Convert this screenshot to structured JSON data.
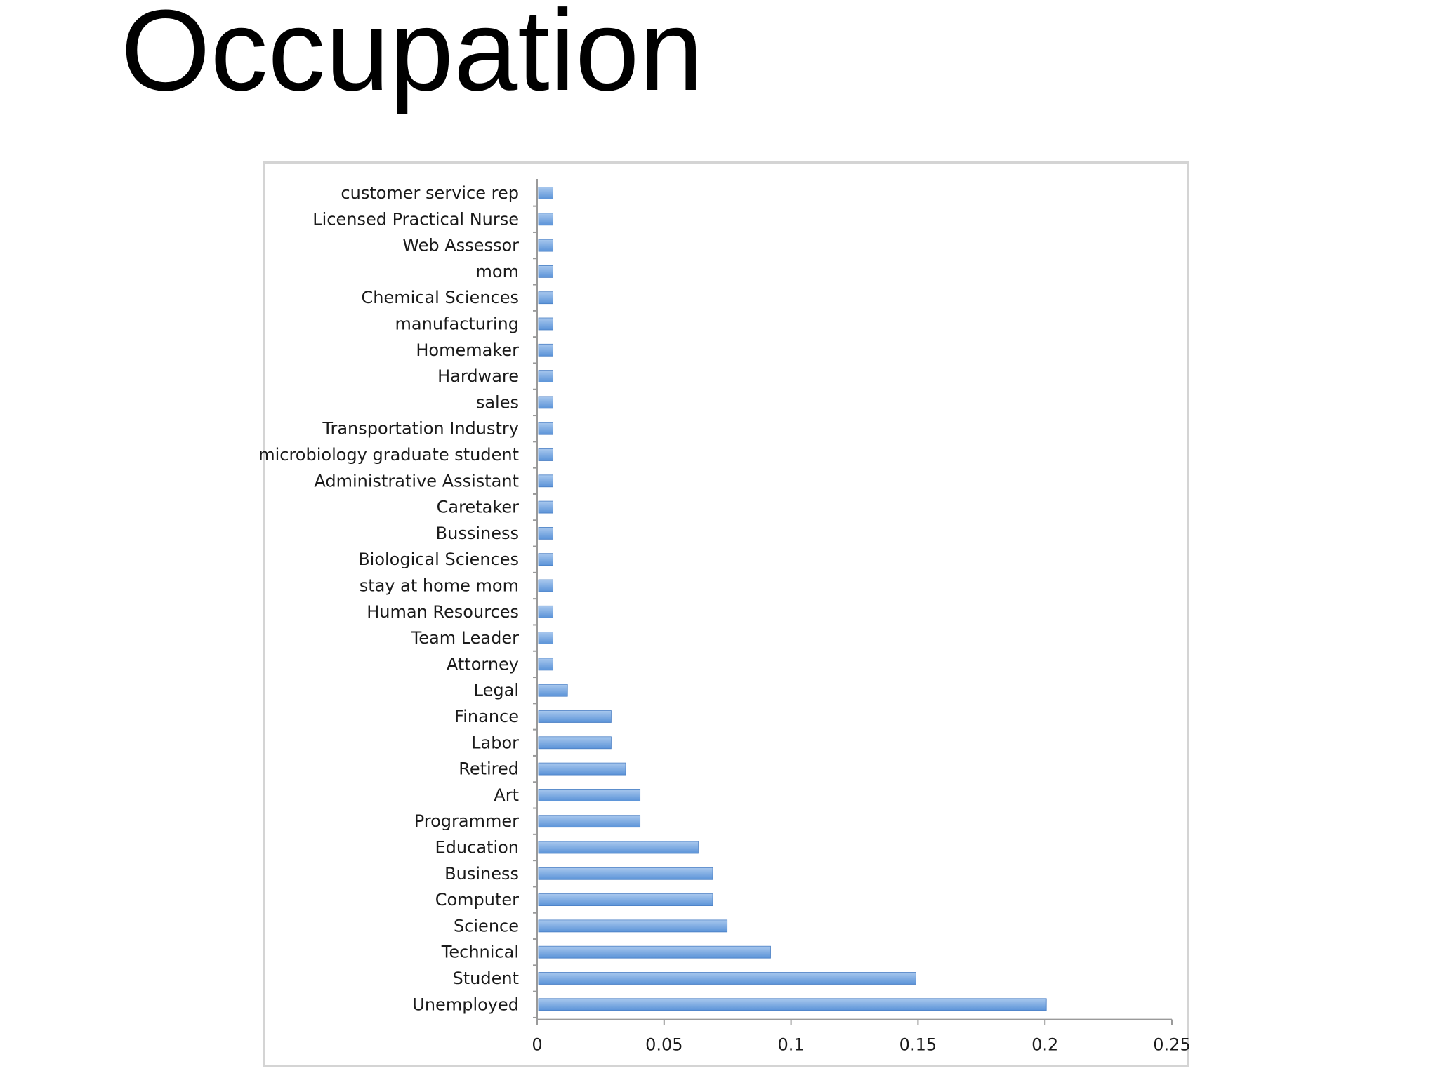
{
  "slide": {
    "title": "Occupation"
  },
  "chart_data": {
    "type": "bar",
    "orientation": "horizontal",
    "categories": [
      "customer service rep",
      "Licensed Practical Nurse",
      "Web Assessor",
      "mom",
      "Chemical Sciences",
      "manufacturing",
      "Homemaker",
      "Hardware",
      "sales",
      "Transportation Industry",
      "microbiology graduate student",
      "Administrative Assistant",
      "Caretaker",
      "Bussiness",
      "Biological Sciences",
      "stay at home mom",
      "Human Resources",
      "Team Leader",
      "Attorney",
      "Legal",
      "Finance",
      "Labor",
      "Retired",
      "Art",
      "Programmer",
      "Education",
      "Business",
      "Computer",
      "Science",
      "Technical",
      "Student",
      "Unemployed"
    ],
    "values": [
      0.0057,
      0.0057,
      0.0057,
      0.0057,
      0.0057,
      0.0057,
      0.0057,
      0.0057,
      0.0057,
      0.0057,
      0.0057,
      0.0057,
      0.0057,
      0.0057,
      0.0057,
      0.0057,
      0.0057,
      0.0057,
      0.0057,
      0.0114,
      0.0286,
      0.0286,
      0.0343,
      0.04,
      0.04,
      0.0629,
      0.0686,
      0.0686,
      0.0743,
      0.0914,
      0.1486,
      0.2
    ],
    "xlim": [
      0,
      0.25
    ],
    "xticks": [
      "0",
      "0.05",
      "0.1",
      "0.15",
      "0.2",
      "0.25"
    ],
    "xtick_values": [
      0,
      0.05,
      0.1,
      0.15,
      0.2,
      0.25
    ],
    "title": "",
    "xlabel": "",
    "ylabel": "",
    "grid": false,
    "legend": "none",
    "colors": {
      "bar_top": "#a9c8ee",
      "bar_bottom": "#5b93d8",
      "bar_edge": "#4a7fc4",
      "axis": "#9a9a9a",
      "frame": "#d4d4d4"
    }
  }
}
